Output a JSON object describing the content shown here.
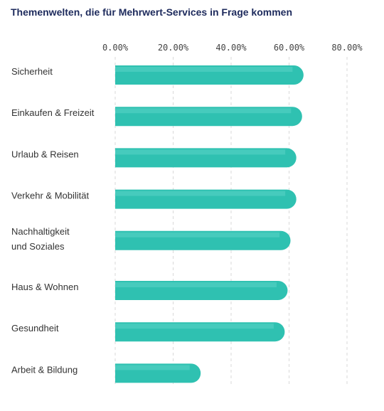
{
  "chart_data": {
    "type": "bar",
    "orientation": "horizontal",
    "title": "Themenwelten, die für Mehrwert-Services in Frage kommen",
    "xlabel": "",
    "ylabel": "",
    "categories": [
      [
        "Sicherheit"
      ],
      [
        "Einkaufen & Freizeit"
      ],
      [
        "Urlaub & Reisen"
      ],
      [
        "Verkehr & Mobilität"
      ],
      [
        "Nachhaltigkeit",
        "und Soziales"
      ],
      [
        "Haus & Wohnen"
      ],
      [
        "Gesundheit"
      ],
      [
        "Arbeit & Bildung"
      ]
    ],
    "values": [
      65.0,
      64.5,
      62.5,
      62.5,
      60.5,
      59.5,
      58.5,
      29.5
    ],
    "xlim": [
      0,
      80
    ],
    "ticks": [
      0,
      20,
      40,
      60,
      80
    ],
    "tick_labels": [
      "0.00%",
      "20.00%",
      "40.00%",
      "60.00%",
      "80.00%"
    ],
    "grid": true,
    "legend": false,
    "colors": {
      "bar": "#2fc1b1",
      "bar_highlight": "#46cbbd",
      "title": "#1d2a5c"
    }
  }
}
